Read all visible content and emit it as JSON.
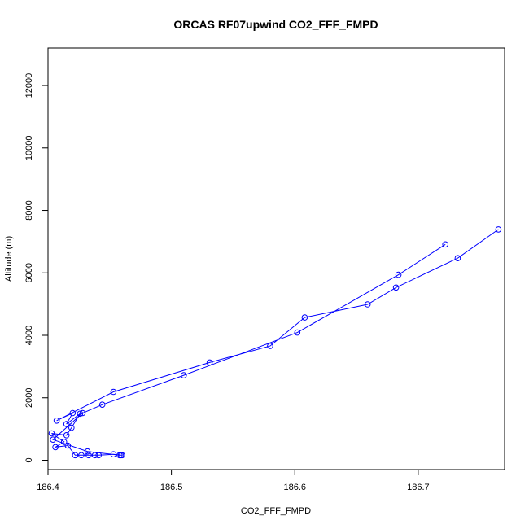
{
  "chart_data": {
    "type": "line",
    "title": "ORCAS RF07upwind CO2_FFF_FMPD",
    "xlabel": "CO2_FFF_FMPD",
    "ylabel": "Altitude (m)",
    "xlim": [
      186.4,
      186.77
    ],
    "ylim": [
      -300,
      13200
    ],
    "xticks": [
      "186.4",
      "186.5",
      "186.6",
      "186.7"
    ],
    "yticks": [
      "0",
      "2000",
      "4000",
      "6000",
      "8000",
      "10000",
      "12000"
    ],
    "series_color": "#0000ff",
    "points": [
      {
        "x": 186.765,
        "y": 7390
      },
      {
        "x": 186.732,
        "y": 6470
      },
      {
        "x": 186.682,
        "y": 5530
      },
      {
        "x": 186.659,
        "y": 4990
      },
      {
        "x": 186.608,
        "y": 4570
      },
      {
        "x": 186.58,
        "y": 3660
      },
      {
        "x": 186.531,
        "y": 3130
      },
      {
        "x": 186.453,
        "y": 2190
      },
      {
        "x": 186.407,
        "y": 1270
      },
      {
        "x": 186.42,
        "y": 1510
      },
      {
        "x": 186.415,
        "y": 1160
      },
      {
        "x": 186.426,
        "y": 1490
      },
      {
        "x": 186.419,
        "y": 1040
      },
      {
        "x": 186.415,
        "y": 800
      },
      {
        "x": 186.403,
        "y": 860
      },
      {
        "x": 186.413,
        "y": 590
      },
      {
        "x": 186.406,
        "y": 420
      },
      {
        "x": 186.416,
        "y": 470
      },
      {
        "x": 186.422,
        "y": 160
      },
      {
        "x": 186.427,
        "y": 160
      },
      {
        "x": 186.433,
        "y": 160
      },
      {
        "x": 186.438,
        "y": 160
      },
      {
        "x": 186.441,
        "y": 160
      },
      {
        "x": 186.453,
        "y": 190
      },
      {
        "x": 186.459,
        "y": 160
      },
      {
        "x": 186.46,
        "y": 160
      },
      {
        "x": 186.458,
        "y": 160
      },
      {
        "x": 186.432,
        "y": 280
      },
      {
        "x": 186.404,
        "y": 660
      },
      {
        "x": 186.428,
        "y": 1510
      },
      {
        "x": 186.444,
        "y": 1780
      },
      {
        "x": 186.51,
        "y": 2720
      },
      {
        "x": 186.602,
        "y": 4090
      },
      {
        "x": 186.684,
        "y": 5940
      },
      {
        "x": 186.722,
        "y": 6910
      }
    ]
  }
}
